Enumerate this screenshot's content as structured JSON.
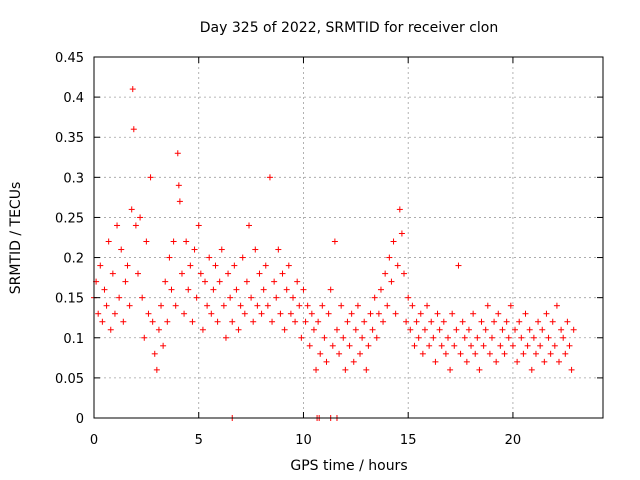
{
  "chart_data": {
    "type": "scatter",
    "title": "Day 325 of 2022, SRMTID for receiver clon",
    "xlabel": "GPS time / hours",
    "ylabel": "SRMTID / TECUs",
    "xlim": [
      0,
      24.3
    ],
    "ylim": [
      0,
      0.45
    ],
    "xticks": [
      0,
      5,
      10,
      15,
      20
    ],
    "xtick_labels": [
      "0",
      "5",
      "10",
      "15",
      "20"
    ],
    "yticks": [
      0,
      0.05,
      0.1,
      0.15,
      0.2,
      0.25,
      0.3,
      0.35,
      0.4,
      0.45
    ],
    "ytick_labels": [
      "0",
      "0.05",
      "0.1",
      "0.15",
      "0.2",
      "0.25",
      "0.3",
      "0.35",
      "0.4",
      "0.45"
    ],
    "grid": true,
    "marker": "plus",
    "color": "#ff0000",
    "series": [
      {
        "x": [
          0.0,
          0.1,
          0.2,
          0.3,
          0.4,
          0.5,
          0.6,
          0.7,
          0.8,
          0.9,
          1.0,
          1.1,
          1.2,
          1.3,
          1.4,
          1.5,
          1.6,
          1.7,
          1.8,
          1.85,
          1.9,
          2.0,
          2.1,
          2.2,
          2.3,
          2.4,
          2.5,
          2.6,
          2.7,
          2.8,
          2.9,
          3.0,
          3.1,
          3.2,
          3.3,
          3.4,
          3.5,
          3.6,
          3.7,
          3.8,
          3.9,
          4.0,
          4.05,
          4.1,
          4.2,
          4.3,
          4.4,
          4.5,
          4.6,
          4.7,
          4.8,
          4.9,
          5.0,
          5.1,
          5.2,
          5.3,
          5.4,
          5.5,
          5.6,
          5.7,
          5.8,
          5.9,
          6.0,
          6.1,
          6.2,
          6.3,
          6.4,
          6.5,
          6.6,
          6.7,
          6.8,
          6.9,
          7.0,
          7.1,
          7.2,
          7.3,
          7.4,
          7.5,
          7.6,
          7.7,
          7.8,
          7.9,
          8.0,
          8.1,
          8.2,
          8.3,
          8.4,
          8.5,
          8.6,
          8.7,
          8.8,
          8.9,
          9.0,
          9.1,
          9.2,
          9.3,
          9.4,
          9.5,
          9.6,
          9.7,
          9.8,
          9.9,
          10.0,
          10.1,
          10.2,
          10.3,
          10.4,
          10.5,
          10.6,
          10.7,
          10.8,
          10.9,
          11.0,
          11.1,
          11.2,
          11.3,
          11.4,
          11.5,
          11.6,
          11.7,
          11.8,
          11.9,
          12.0,
          12.1,
          12.2,
          12.3,
          12.4,
          12.5,
          12.6,
          12.7,
          12.8,
          12.9,
          13.0,
          13.1,
          13.2,
          13.3,
          13.4,
          13.5,
          13.6,
          13.7,
          13.8,
          13.9,
          14.0,
          14.1,
          14.2,
          14.3,
          14.4,
          14.5,
          14.6,
          14.7,
          14.8,
          14.9,
          15.0,
          15.1,
          15.2,
          15.3,
          15.4,
          15.5,
          15.6,
          15.7,
          15.8,
          15.9,
          16.0,
          16.1,
          16.2,
          16.3,
          16.4,
          16.5,
          16.6,
          16.7,
          16.8,
          16.9,
          17.0,
          17.1,
          17.2,
          17.3,
          17.4,
          17.5,
          17.6,
          17.7,
          17.8,
          17.9,
          18.0,
          18.1,
          18.2,
          18.3,
          18.4,
          18.5,
          18.6,
          18.7,
          18.8,
          18.9,
          19.0,
          19.1,
          19.2,
          19.3,
          19.4,
          19.5,
          19.6,
          19.7,
          19.8,
          19.9,
          20.0,
          20.1,
          20.2,
          20.3,
          20.4,
          20.5,
          20.6,
          20.7,
          20.8,
          20.9,
          21.0,
          21.1,
          21.2,
          21.3,
          21.4,
          21.5,
          21.6,
          21.7,
          21.8,
          21.9,
          22.0,
          22.1,
          22.2,
          22.3,
          22.4,
          22.5,
          22.6,
          22.7,
          22.8,
          22.9,
          6.6,
          10.65,
          10.75,
          11.3,
          11.6
        ],
        "y": [
          0.15,
          0.17,
          0.13,
          0.19,
          0.12,
          0.16,
          0.14,
          0.22,
          0.11,
          0.18,
          0.13,
          0.24,
          0.15,
          0.21,
          0.12,
          0.17,
          0.19,
          0.14,
          0.26,
          0.41,
          0.36,
          0.24,
          0.18,
          0.25,
          0.15,
          0.1,
          0.22,
          0.13,
          0.3,
          0.12,
          0.08,
          0.06,
          0.11,
          0.14,
          0.09,
          0.17,
          0.12,
          0.2,
          0.16,
          0.22,
          0.14,
          0.33,
          0.29,
          0.27,
          0.18,
          0.13,
          0.22,
          0.16,
          0.19,
          0.12,
          0.21,
          0.15,
          0.24,
          0.18,
          0.11,
          0.17,
          0.14,
          0.2,
          0.13,
          0.16,
          0.19,
          0.12,
          0.17,
          0.21,
          0.14,
          0.1,
          0.18,
          0.15,
          0.12,
          0.19,
          0.16,
          0.11,
          0.14,
          0.2,
          0.13,
          0.17,
          0.24,
          0.15,
          0.12,
          0.21,
          0.14,
          0.18,
          0.13,
          0.16,
          0.19,
          0.14,
          0.3,
          0.12,
          0.17,
          0.15,
          0.21,
          0.13,
          0.18,
          0.11,
          0.16,
          0.19,
          0.13,
          0.15,
          0.12,
          0.17,
          0.14,
          0.1,
          0.16,
          0.12,
          0.14,
          0.09,
          0.13,
          0.11,
          0.06,
          0.12,
          0.08,
          0.14,
          0.1,
          0.07,
          0.13,
          0.16,
          0.09,
          0.22,
          0.11,
          0.08,
          0.14,
          0.1,
          0.06,
          0.12,
          0.09,
          0.13,
          0.07,
          0.11,
          0.14,
          0.08,
          0.1,
          0.12,
          0.06,
          0.09,
          0.13,
          0.11,
          0.15,
          0.1,
          0.13,
          0.16,
          0.12,
          0.18,
          0.14,
          0.2,
          0.17,
          0.22,
          0.13,
          0.19,
          0.26,
          0.23,
          0.18,
          0.12,
          0.15,
          0.11,
          0.14,
          0.09,
          0.12,
          0.1,
          0.13,
          0.08,
          0.11,
          0.14,
          0.09,
          0.12,
          0.1,
          0.07,
          0.13,
          0.11,
          0.09,
          0.12,
          0.08,
          0.1,
          0.06,
          0.13,
          0.09,
          0.11,
          0.19,
          0.08,
          0.12,
          0.1,
          0.07,
          0.11,
          0.09,
          0.13,
          0.08,
          0.1,
          0.06,
          0.12,
          0.09,
          0.11,
          0.14,
          0.08,
          0.1,
          0.12,
          0.07,
          0.13,
          0.09,
          0.11,
          0.08,
          0.12,
          0.1,
          0.14,
          0.09,
          0.11,
          0.07,
          0.12,
          0.1,
          0.08,
          0.13,
          0.09,
          0.11,
          0.06,
          0.1,
          0.08,
          0.12,
          0.09,
          0.11,
          0.07,
          0.13,
          0.1,
          0.08,
          0.12,
          0.09,
          0.14,
          0.07,
          0.11,
          0.1,
          0.08,
          0.12,
          0.09,
          0.06,
          0.11,
          0.0,
          0.0,
          0.0,
          0.0,
          0.0
        ]
      }
    ]
  }
}
